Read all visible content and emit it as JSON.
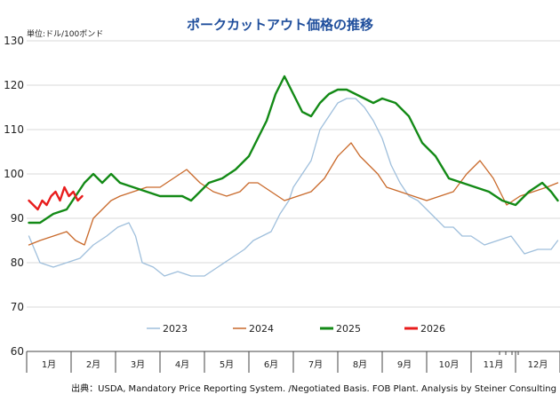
{
  "chart_data": {
    "type": "line",
    "title": "ポークカットアウト価格の推移",
    "unit_label": "単位:ドル/100ポンド",
    "source": "出典：USDA, Mandatory Price Reporting System. /Negotiated Basis. FOB Plant. Analysis by Steiner Consulting",
    "months": [
      "1月",
      "2月",
      "3月",
      "4月",
      "5月",
      "6月",
      "7月",
      "8月",
      "9月",
      "10月",
      "11月",
      "12月"
    ],
    "ylim": [
      60,
      130
    ],
    "yticks": [
      60,
      70,
      80,
      90,
      100,
      110,
      120,
      130
    ],
    "xlim": [
      0,
      12
    ],
    "grid": "horizontal",
    "legend_position": "bottom",
    "series": [
      {
        "name": "2023",
        "color": "#9fbfdc",
        "x": [
          0.05,
          0.3,
          0.6,
          0.9,
          1.2,
          1.5,
          1.8,
          2.05,
          2.3,
          2.45,
          2.6,
          2.85,
          3.1,
          3.4,
          3.7,
          4.0,
          4.3,
          4.6,
          4.9,
          5.1,
          5.3,
          5.5,
          5.7,
          5.9,
          6.0,
          6.2,
          6.4,
          6.6,
          6.8,
          7.0,
          7.2,
          7.4,
          7.6,
          7.8,
          8.0,
          8.2,
          8.4,
          8.6,
          8.8,
          9.0,
          9.2,
          9.4,
          9.6,
          9.8,
          10.0,
          10.3,
          10.6,
          10.9,
          11.2,
          11.5,
          11.8,
          11.95
        ],
        "y": [
          86,
          80,
          79,
          80,
          81,
          84,
          86,
          88,
          89,
          86,
          80,
          79,
          77,
          78,
          77,
          77,
          79,
          81,
          83,
          85,
          86,
          87,
          91,
          94,
          97,
          100,
          103,
          110,
          113,
          116,
          117,
          117,
          115,
          112,
          108,
          102,
          98,
          95,
          94,
          92,
          90,
          88,
          88,
          86,
          86,
          84,
          85,
          86,
          82,
          83,
          83,
          85
        ]
      },
      {
        "name": "2024",
        "color": "#c9692a",
        "x": [
          0.05,
          0.3,
          0.6,
          0.9,
          1.1,
          1.3,
          1.5,
          1.7,
          1.9,
          2.1,
          2.4,
          2.7,
          3.0,
          3.3,
          3.6,
          3.9,
          4.2,
          4.5,
          4.8,
          5.0,
          5.2,
          5.5,
          5.8,
          6.1,
          6.4,
          6.7,
          7.0,
          7.3,
          7.5,
          7.7,
          7.9,
          8.1,
          8.4,
          8.7,
          9.0,
          9.3,
          9.6,
          9.9,
          10.2,
          10.5,
          10.8,
          11.1,
          11.4,
          11.7,
          11.95
        ],
        "y": [
          84,
          85,
          86,
          87,
          85,
          84,
          90,
          92,
          94,
          95,
          96,
          97,
          97,
          99,
          101,
          98,
          96,
          95,
          96,
          98,
          98,
          96,
          94,
          95,
          96,
          99,
          104,
          107,
          104,
          102,
          100,
          97,
          96,
          95,
          94,
          95,
          96,
          100,
          103,
          99,
          93,
          95,
          96,
          97,
          98
        ]
      },
      {
        "name": "2025",
        "color": "#138a16",
        "x": [
          0.05,
          0.3,
          0.6,
          0.9,
          1.1,
          1.3,
          1.5,
          1.7,
          1.9,
          2.1,
          2.4,
          2.7,
          3.0,
          3.3,
          3.5,
          3.7,
          3.9,
          4.1,
          4.4,
          4.7,
          5.0,
          5.2,
          5.4,
          5.6,
          5.8,
          6.0,
          6.2,
          6.4,
          6.6,
          6.8,
          7.0,
          7.2,
          7.4,
          7.6,
          7.8,
          8.0,
          8.3,
          8.6,
          8.9,
          9.2,
          9.5,
          9.8,
          10.1,
          10.4,
          10.7,
          11.0,
          11.3,
          11.6,
          11.8,
          11.95
        ],
        "y": [
          89,
          89,
          91,
          92,
          95,
          98,
          100,
          98,
          100,
          98,
          97,
          96,
          95,
          95,
          95,
          94,
          96,
          98,
          99,
          101,
          104,
          108,
          112,
          118,
          122,
          118,
          114,
          113,
          116,
          118,
          119,
          119,
          118,
          117,
          116,
          117,
          116,
          113,
          107,
          104,
          99,
          98,
          97,
          96,
          94,
          93,
          96,
          98,
          96,
          94
        ]
      },
      {
        "name": "2026",
        "color": "#e81c1c",
        "x": [
          0.05,
          0.15,
          0.25,
          0.35,
          0.45,
          0.55,
          0.65,
          0.75,
          0.85,
          0.95,
          1.05,
          1.15,
          1.25
        ],
        "y": [
          94,
          93,
          92,
          94,
          93,
          95,
          96,
          94,
          97,
          95,
          96,
          94,
          95
        ]
      }
    ]
  }
}
